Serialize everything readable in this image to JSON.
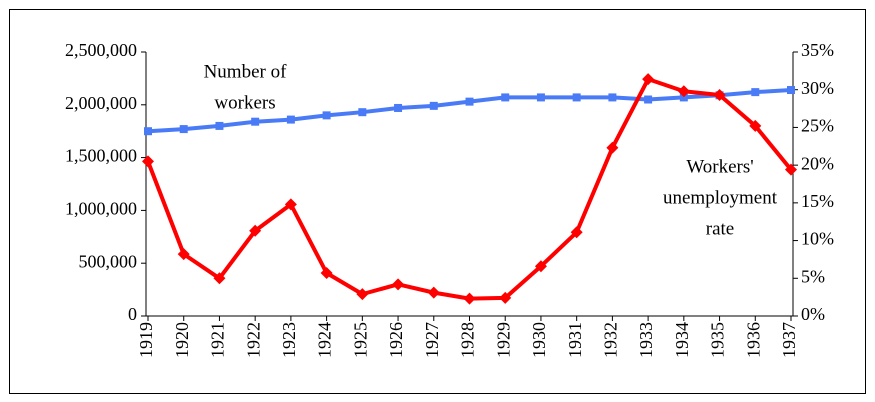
{
  "chart_data": {
    "type": "line",
    "categories": [
      "1919",
      "1920",
      "1921",
      "1922",
      "1923",
      "1924",
      "1925",
      "1926",
      "1927",
      "1928",
      "1929",
      "1930",
      "1931",
      "1932",
      "1933",
      "1934",
      "1935",
      "1936",
      "1937"
    ],
    "series": [
      {
        "name": "Number of workers",
        "color": "#4a7bf7",
        "marker": "square",
        "values": [
          1750000,
          1770000,
          1800000,
          1840000,
          1860000,
          1900000,
          1930000,
          1970000,
          1990000,
          2030000,
          2070000,
          2070000,
          2070000,
          2070000,
          2050000,
          2070000,
          2090000,
          2120000,
          2140000
        ]
      },
      {
        "name": "Workers' unemployment rate",
        "color": "#ff0000",
        "marker": "diamond",
        "axis": "y2",
        "values": [
          20.5,
          8.2,
          5.0,
          11.3,
          14.8,
          5.7,
          2.9,
          4.2,
          3.1,
          2.3,
          2.4,
          6.6,
          11.1,
          22.3,
          31.4,
          29.8,
          29.3,
          25.2,
          19.4
        ]
      }
    ],
    "annotations": [
      {
        "lines": [
          "Number of",
          "workers"
        ]
      },
      {
        "lines": [
          "Workers'",
          "unemployment",
          "rate"
        ]
      }
    ],
    "ylim": [
      0,
      2500000
    ],
    "yticks": [
      0,
      {
        "value": 500000,
        "label": "500,000"
      },
      {
        "value": 1000000,
        "label": "1,000,000"
      },
      {
        "value": 1500000,
        "label": "1,500,000"
      },
      {
        "value": 2000000,
        "label": "2,000,000"
      },
      {
        "value": 2500000,
        "label": "2,500,000"
      }
    ],
    "y2lim": [
      0,
      35
    ],
    "y2ticks": [
      {
        "value": 0,
        "label": "0%"
      },
      {
        "value": 5,
        "label": "5%"
      },
      {
        "value": 10,
        "label": "10%"
      },
      {
        "value": 15,
        "label": "15%"
      },
      {
        "value": 20,
        "label": "20%"
      },
      {
        "value": 25,
        "label": "25%"
      },
      {
        "value": 30,
        "label": "30%"
      },
      {
        "value": 35,
        "label": "35%"
      }
    ],
    "grid": false
  }
}
